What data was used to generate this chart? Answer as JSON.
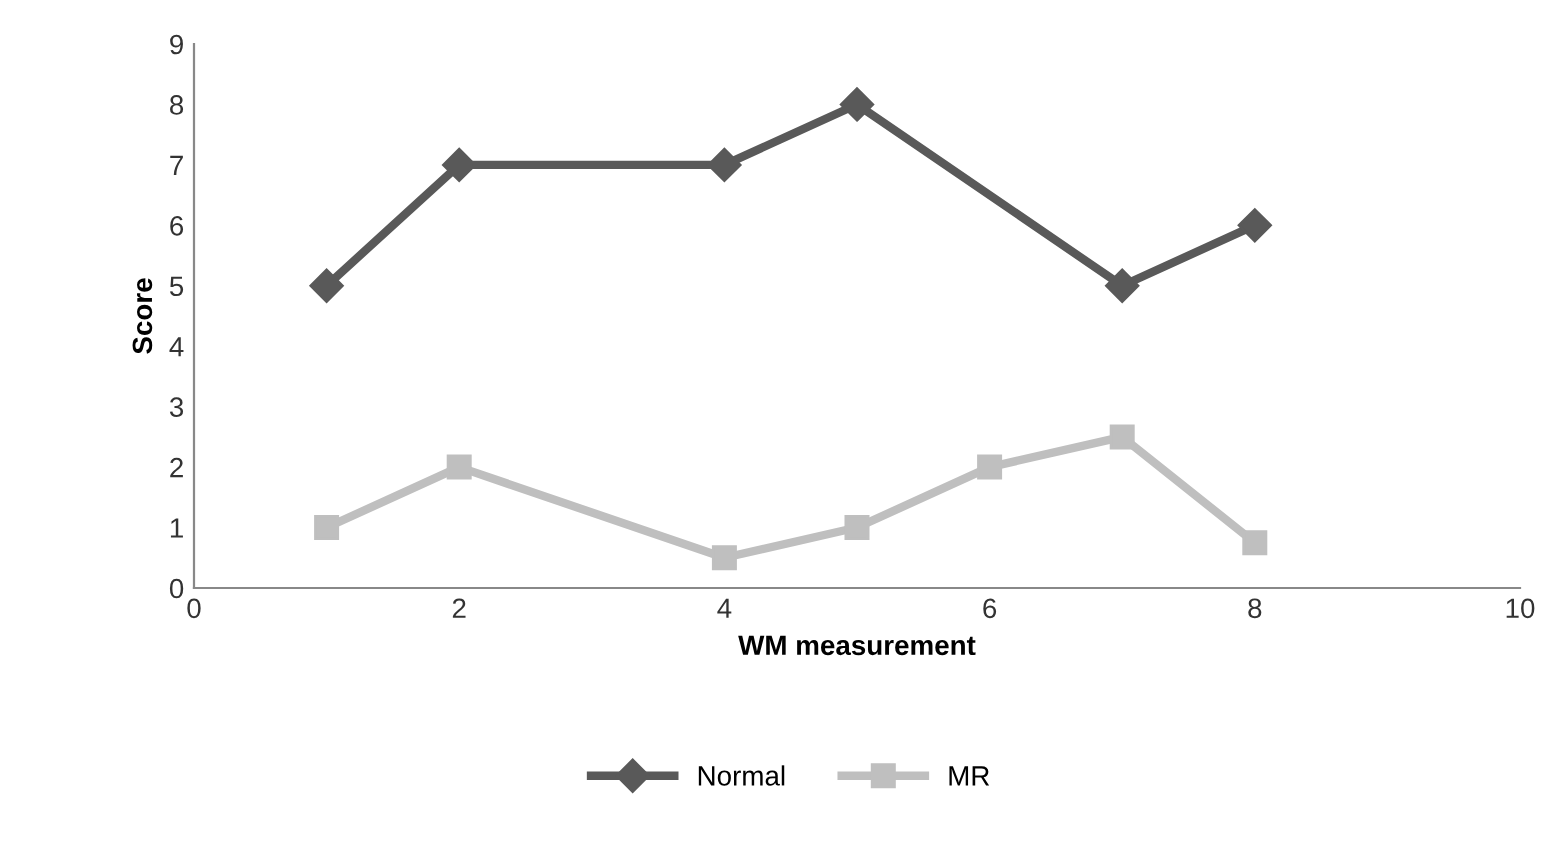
{
  "chart_data": {
    "type": "line",
    "xlabel": "WM measurement",
    "ylabel": "Score",
    "xlim": [
      0,
      10
    ],
    "xticks": [
      0,
      2,
      4,
      6,
      8,
      10
    ],
    "ylim": [
      0,
      9
    ],
    "yticks": [
      0,
      1,
      2,
      3,
      4,
      5,
      6,
      7,
      8,
      9
    ],
    "grid": false,
    "legend": "bottom",
    "line_style": "solid",
    "series": [
      {
        "name": "Normal",
        "color": "#595959",
        "marker": "diamond",
        "x": [
          1,
          2,
          4,
          5,
          7,
          8
        ],
        "values": [
          5,
          7,
          7,
          8,
          5,
          6
        ]
      },
      {
        "name": "MR",
        "color": "#bfbfbf",
        "marker": "square",
        "x": [
          1,
          2,
          4,
          5,
          6,
          7,
          8
        ],
        "values": [
          1,
          2,
          0.5,
          1,
          2,
          2.5,
          0.75
        ]
      }
    ]
  }
}
